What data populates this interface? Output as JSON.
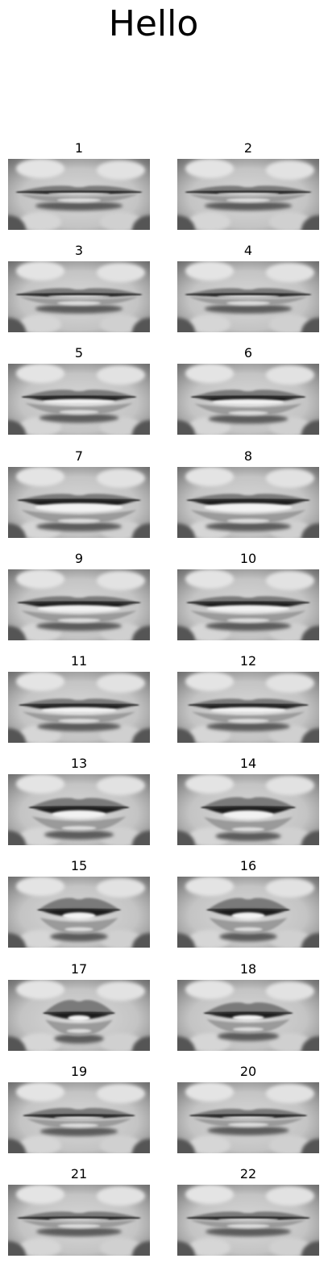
{
  "title": "Hello",
  "frames": [
    {
      "label": "1",
      "open": 0.06,
      "width": 0.88,
      "pucker": 0.0,
      "teeth": 0.55
    },
    {
      "label": "2",
      "open": 0.06,
      "width": 0.88,
      "pucker": 0.0,
      "teeth": 0.55
    },
    {
      "label": "3",
      "open": 0.07,
      "width": 0.88,
      "pucker": 0.0,
      "teeth": 0.55
    },
    {
      "label": "4",
      "open": 0.07,
      "width": 0.88,
      "pucker": 0.0,
      "teeth": 0.55
    },
    {
      "label": "5",
      "open": 0.2,
      "width": 0.8,
      "pucker": 0.1,
      "teeth": 0.7
    },
    {
      "label": "6",
      "open": 0.22,
      "width": 0.8,
      "pucker": 0.1,
      "teeth": 0.7
    },
    {
      "label": "7",
      "open": 0.32,
      "width": 0.86,
      "pucker": 0.0,
      "teeth": 0.8
    },
    {
      "label": "8",
      "open": 0.32,
      "width": 0.86,
      "pucker": 0.0,
      "teeth": 0.8
    },
    {
      "label": "9",
      "open": 0.26,
      "width": 0.86,
      "pucker": 0.0,
      "teeth": 0.75
    },
    {
      "label": "10",
      "open": 0.26,
      "width": 0.86,
      "pucker": 0.0,
      "teeth": 0.75
    },
    {
      "label": "11",
      "open": 0.22,
      "width": 0.84,
      "pucker": 0.0,
      "teeth": 0.7
    },
    {
      "label": "12",
      "open": 0.22,
      "width": 0.84,
      "pucker": 0.0,
      "teeth": 0.7
    },
    {
      "label": "13",
      "open": 0.3,
      "width": 0.7,
      "pucker": 0.4,
      "teeth": 0.6
    },
    {
      "label": "14",
      "open": 0.32,
      "width": 0.66,
      "pucker": 0.5,
      "teeth": 0.6
    },
    {
      "label": "15",
      "open": 0.26,
      "width": 0.58,
      "pucker": 0.7,
      "teeth": 0.45
    },
    {
      "label": "16",
      "open": 0.26,
      "width": 0.58,
      "pucker": 0.7,
      "teeth": 0.45
    },
    {
      "label": "17",
      "open": 0.22,
      "width": 0.5,
      "pucker": 0.85,
      "teeth": 0.35
    },
    {
      "label": "18",
      "open": 0.2,
      "width": 0.62,
      "pucker": 0.55,
      "teeth": 0.4
    },
    {
      "label": "19",
      "open": 0.09,
      "width": 0.78,
      "pucker": 0.15,
      "teeth": 0.5
    },
    {
      "label": "20",
      "open": 0.08,
      "width": 0.82,
      "pucker": 0.05,
      "teeth": 0.5
    },
    {
      "label": "21",
      "open": 0.06,
      "width": 0.86,
      "pucker": 0.0,
      "teeth": 0.55
    },
    {
      "label": "22",
      "open": 0.06,
      "width": 0.86,
      "pucker": 0.0,
      "teeth": 0.55
    }
  ]
}
